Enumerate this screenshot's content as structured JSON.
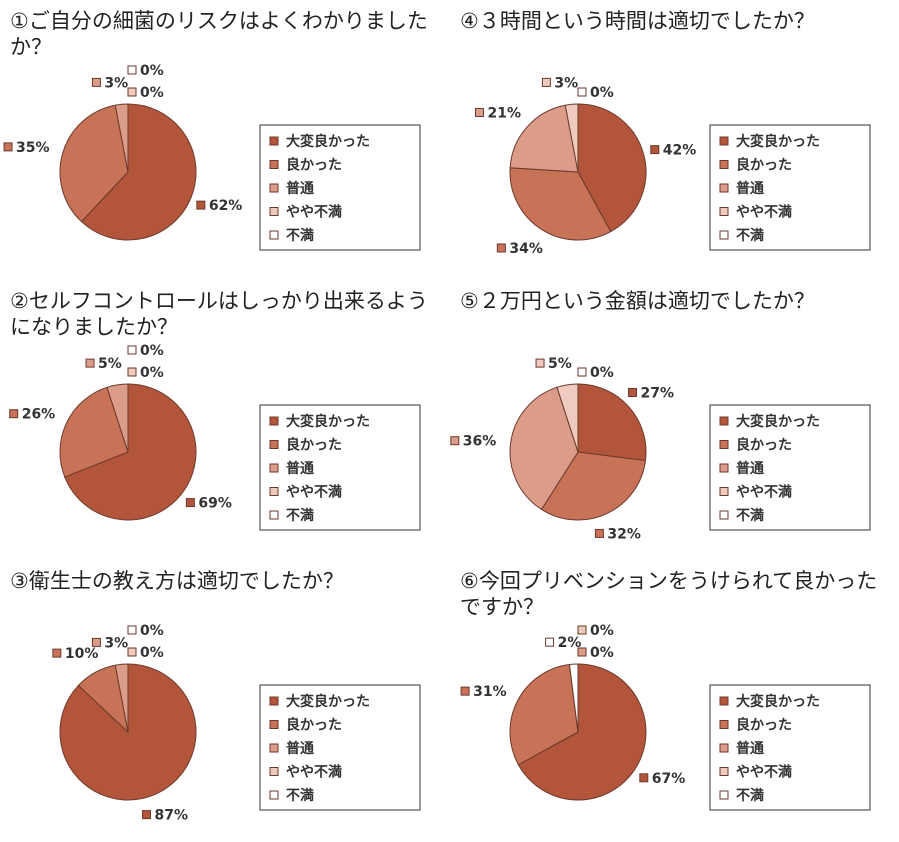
{
  "chart_data": [
    {
      "type": "pie",
      "title": "①ご自分の細菌のリスクはよくわかりましたか？",
      "categories": [
        "大変良かった",
        "良かった",
        "普通",
        "やや不満",
        "不満"
      ],
      "values": [
        62,
        35,
        3,
        0,
        0
      ],
      "value_labels": [
        "62%",
        "35%",
        "3%",
        "0%",
        "0%"
      ],
      "colors": [
        "#b3553a",
        "#c87258",
        "#dc9c8a",
        "#efcabe",
        "#ffffff"
      ]
    },
    {
      "type": "pie",
      "title": "②セルフコントロールはしっかり出来るようになりましたか？",
      "categories": [
        "大変良かった",
        "良かった",
        "普通",
        "やや不満",
        "不満"
      ],
      "values": [
        69,
        26,
        5,
        0,
        0
      ],
      "value_labels": [
        "69%",
        "26%",
        "5%",
        "0%",
        "0%"
      ],
      "colors": [
        "#b3553a",
        "#c87258",
        "#dc9c8a",
        "#efcabe",
        "#ffffff"
      ]
    },
    {
      "type": "pie",
      "title": "③衛生士の教え方は適切でしたか？",
      "categories": [
        "大変良かった",
        "良かった",
        "普通",
        "やや不満",
        "不満"
      ],
      "values": [
        87,
        10,
        3,
        0,
        0
      ],
      "value_labels": [
        "87%",
        "10%",
        "3%",
        "0%",
        "0%"
      ],
      "colors": [
        "#b3553a",
        "#c87258",
        "#dc9c8a",
        "#efcabe",
        "#ffffff"
      ]
    },
    {
      "type": "pie",
      "title": "④３時間という時間は適切でしたか？",
      "categories": [
        "大変良かった",
        "良かった",
        "普通",
        "やや不満",
        "不満"
      ],
      "values": [
        42,
        34,
        21,
        3,
        0
      ],
      "value_labels": [
        "42%",
        "34%",
        "21%",
        "3%",
        "0%"
      ],
      "colors": [
        "#b3553a",
        "#c87258",
        "#dc9c8a",
        "#efcabe",
        "#ffffff"
      ]
    },
    {
      "type": "pie",
      "title": "⑤２万円という金額は適切でしたか？",
      "categories": [
        "大変良かった",
        "良かった",
        "普通",
        "やや不満",
        "不満"
      ],
      "values": [
        27,
        32,
        36,
        5,
        0
      ],
      "value_labels": [
        "27%",
        "32%",
        "36%",
        "5%",
        "0%"
      ],
      "colors": [
        "#b3553a",
        "#c87258",
        "#dc9c8a",
        "#efcabe",
        "#ffffff"
      ]
    },
    {
      "type": "pie",
      "title": "⑥今回プリベンションをうけられて良かったですか？",
      "categories": [
        "大変良かった",
        "良かった",
        "普通",
        "やや不満",
        "不満"
      ],
      "values": [
        67,
        31,
        0,
        0,
        2
      ],
      "value_labels": [
        "67%",
        "31%",
        "0%",
        "0%",
        "2%"
      ],
      "colors": [
        "#b3553a",
        "#c87258",
        "#dc9c8a",
        "#efcabe",
        "#ffffff"
      ]
    }
  ]
}
